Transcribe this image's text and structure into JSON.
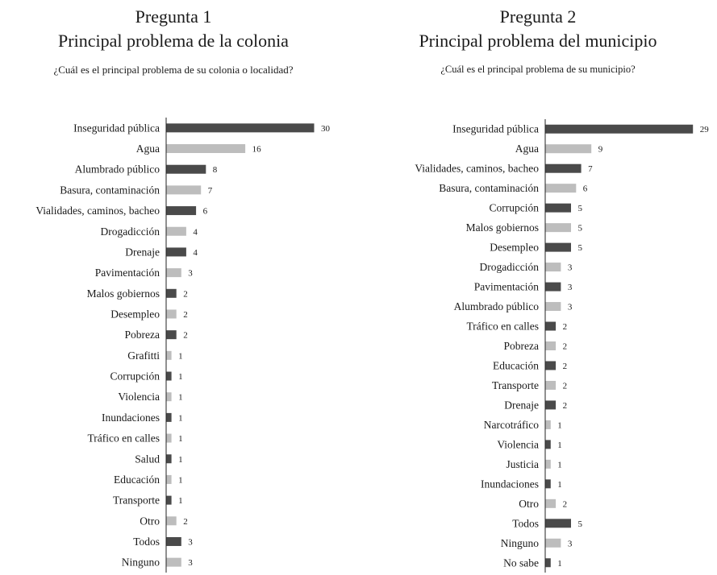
{
  "colors": {
    "dark": "#4a4a4a",
    "light": "#bdbdbd"
  },
  "panels": [
    {
      "number": "Pregunta 1",
      "title": "Principal problema de la colonia",
      "question": "¿Cuál es el principal problema de su colonia o localidad?"
    },
    {
      "number": "Pregunta 2",
      "title": "Principal problema del municipio",
      "question": "¿Cuál es el principal problema de su municipio?"
    }
  ],
  "chart_data": [
    {
      "type": "bar",
      "orientation": "horizontal",
      "title": "Principal problema de la colonia",
      "categories": [
        "Inseguridad pública",
        "Agua",
        "Alumbrado público",
        "Basura, contaminación",
        "Vialidades, caminos, bacheo",
        "Drogadicción",
        "Drenaje",
        "Pavimentación",
        "Malos gobiernos",
        "Desempleo",
        "Pobreza",
        "Grafitti",
        "Corrupción",
        "Violencia",
        "Inundaciones",
        "Tráfico en calles",
        "Salud",
        "Educación",
        "Transporte",
        "Otro",
        "Todos",
        "Ninguno"
      ],
      "values": [
        30,
        16,
        8,
        7,
        6,
        4,
        4,
        3,
        2,
        2,
        2,
        1,
        1,
        1,
        1,
        1,
        1,
        1,
        1,
        2,
        3,
        3
      ],
      "bar_colors": "alternating dark/light starting with dark",
      "xlim": [
        0,
        30
      ],
      "grid": false,
      "legend": "none"
    },
    {
      "type": "bar",
      "orientation": "horizontal",
      "title": "Principal problema del municipio",
      "categories": [
        "Inseguridad pública",
        "Agua",
        "Vialidades, caminos, bacheo",
        "Basura, contaminación",
        "Corrupción",
        "Malos gobiernos",
        "Desempleo",
        "Drogadicción",
        "Pavimentación",
        "Alumbrado público",
        "Tráfico en calles",
        "Pobreza",
        "Educación",
        "Transporte",
        "Drenaje",
        "Narcotráfico",
        "Violencia",
        "Justicia",
        "Inundaciones",
        "Otro",
        "Todos",
        "Ninguno",
        "No sabe"
      ],
      "values": [
        29,
        9,
        7,
        6,
        5,
        5,
        5,
        3,
        3,
        3,
        2,
        2,
        2,
        2,
        2,
        1,
        1,
        1,
        1,
        2,
        5,
        3,
        1
      ],
      "bar_colors": "alternating dark/light starting with dark",
      "xlim": [
        0,
        29
      ],
      "grid": false,
      "legend": "none"
    }
  ]
}
